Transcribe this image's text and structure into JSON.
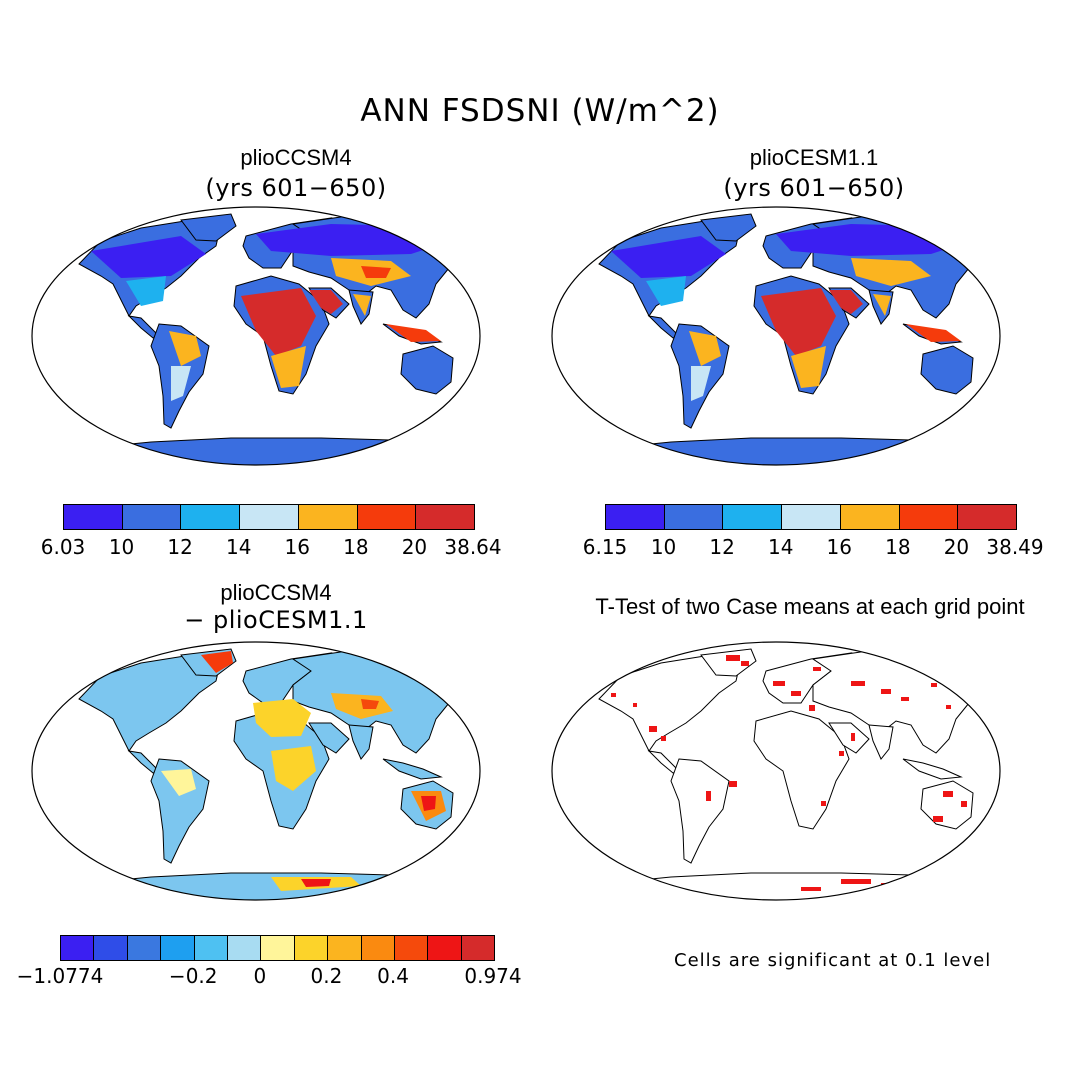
{
  "title": "ANN FSDSNI (W/m^2)",
  "panels": {
    "a": {
      "title": "plioCCSM4",
      "subtitle": "(yrs 601−650)"
    },
    "b": {
      "title": "plioCESM1.1",
      "subtitle": "(yrs 601−650)"
    },
    "c": {
      "title": "plioCCSM4",
      "subtitle": "− plioCESM1.1"
    },
    "d": {
      "title": "T-Test of two Case means at each grid point",
      "note": "Cells are significant at 0.1 level"
    }
  },
  "colorbars": {
    "a": {
      "labels": [
        "6.03",
        "10",
        "12",
        "14",
        "16",
        "18",
        "20",
        "38.64"
      ],
      "colors": [
        "#3b1ff2",
        "#3a6ee0",
        "#1eb1ef",
        "#c8e6f5",
        "#fbb41f",
        "#f53b0c",
        "#d52b2b"
      ]
    },
    "b": {
      "labels": [
        "6.15",
        "10",
        "12",
        "14",
        "16",
        "18",
        "20",
        "38.49"
      ],
      "colors": [
        "#3b1ff2",
        "#3a6ee0",
        "#1eb1ef",
        "#c8e6f5",
        "#fbb41f",
        "#f53b0c",
        "#d52b2b"
      ]
    },
    "c": {
      "labels": [
        "−1.0774",
        "−0.2",
        "0",
        "0.2",
        "0.4",
        "0.974"
      ],
      "colors": [
        "#3b1ff2",
        "#2f4de8",
        "#3a78e0",
        "#1e9ff0",
        "#4ec1f2",
        "#a8dcf2",
        "#fff59a",
        "#fcd32a",
        "#fbb41f",
        "#fa8a10",
        "#f54a0c",
        "#ee1515",
        "#d52b2b"
      ]
    }
  }
}
